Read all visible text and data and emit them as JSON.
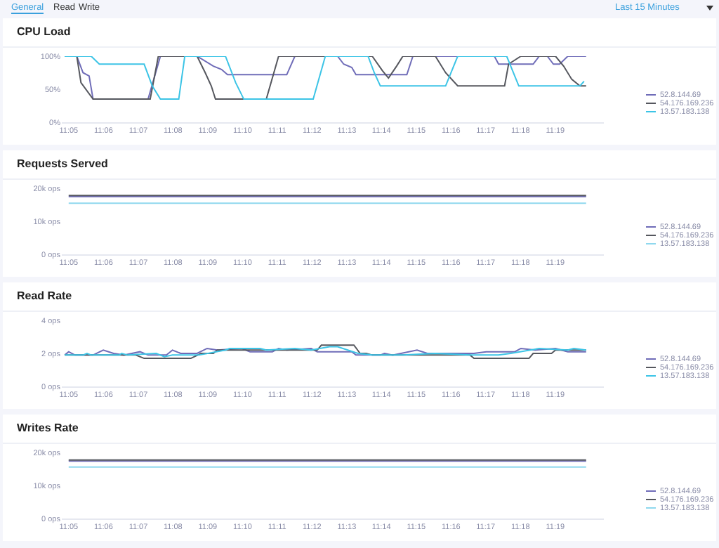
{
  "chart_data": [
    {
      "type": "line",
      "title": "CPU Load",
      "annotations": [
        "General",
        "Read",
        "Write",
        "Last 15 Minutes"
      ],
      "legend": "right",
      "grid": false,
      "xlim": [
        11.08,
        11.34
      ],
      "xticks": [
        {
          "value": 11.0833,
          "label": "11:05"
        },
        {
          "value": 11.1,
          "label": "11:06"
        },
        {
          "value": 11.1167,
          "label": "11:07"
        },
        {
          "value": 11.1333,
          "label": "11:08"
        },
        {
          "value": 11.15,
          "label": "11:09"
        },
        {
          "value": 11.1667,
          "label": "11:10"
        },
        {
          "value": 11.1833,
          "label": "11:11"
        },
        {
          "value": 11.2,
          "label": "11:12"
        },
        {
          "value": 11.2167,
          "label": "11:13"
        },
        {
          "value": 11.2333,
          "label": "11:14"
        },
        {
          "value": 11.25,
          "label": "11:15"
        },
        {
          "value": 11.2667,
          "label": "11:16"
        },
        {
          "value": 11.2833,
          "label": "11:17"
        },
        {
          "value": 11.3,
          "label": "11:18"
        },
        {
          "value": 11.3167,
          "label": "11:19"
        }
      ],
      "ylim": [
        0,
        100
      ],
      "yticks": [
        {
          "value": 0,
          "label": "0%"
        },
        {
          "value": 50,
          "label": "50%"
        },
        {
          "value": 100,
          "label": "100%"
        }
      ],
      "series": [
        {
          "name": "52.8.144.69",
          "color": "#6f6cb8",
          "x": [
            11.0814,
            11.0872,
            11.0902,
            11.0931,
            11.095,
            11.1214,
            11.1273,
            11.1449,
            11.1527,
            11.1566,
            11.1595,
            11.1879,
            11.1918,
            11.2123,
            11.2152,
            11.2191,
            11.2211,
            11.2455,
            11.2484,
            11.2875,
            11.2895,
            11.3061,
            11.309,
            11.3129,
            11.3158,
            11.3188,
            11.3227,
            11.3315
          ],
          "values": [
            100,
            100,
            75,
            70,
            35,
            35,
            100,
            100,
            85,
            80,
            72,
            72,
            100,
            100,
            88,
            83,
            72,
            72,
            100,
            100,
            88,
            88,
            100,
            100,
            88,
            88,
            100,
            100
          ]
        },
        {
          "name": "54.176.169.236",
          "color": "#55575e",
          "x": [
            11.0814,
            11.0872,
            11.0892,
            11.095,
            11.1224,
            11.1263,
            11.1449,
            11.1488,
            11.1517,
            11.1537,
            11.1781,
            11.184,
            11.2289,
            11.2338,
            11.2367,
            11.2406,
            11.2436,
            11.2592,
            11.2641,
            11.2699,
            11.2924,
            11.2943,
            11.3002,
            11.3168,
            11.3207,
            11.3246,
            11.3285,
            11.3315
          ],
          "values": [
            100,
            100,
            60,
            35,
            35,
            100,
            100,
            75,
            55,
            35,
            35,
            100,
            100,
            78,
            67,
            85,
            100,
            100,
            75,
            55,
            55,
            88,
            100,
            100,
            85,
            65,
            55,
            55
          ]
        },
        {
          "name": "13.57.183.138",
          "color": "#3cc4e6",
          "x": [
            11.0814,
            11.0941,
            11.098,
            11.1195,
            11.1234,
            11.1273,
            11.1361,
            11.139,
            11.1585,
            11.1634,
            11.1673,
            11.2006,
            11.2064,
            11.2269,
            11.2299,
            11.2328,
            11.2641,
            11.2699,
            11.2934,
            11.2992,
            11.3285,
            11.3305
          ],
          "values": [
            100,
            100,
            88,
            88,
            55,
            35,
            35,
            100,
            100,
            60,
            35,
            35,
            100,
            100,
            75,
            55,
            55,
            100,
            100,
            55,
            55,
            62
          ]
        }
      ]
    },
    {
      "type": "line",
      "title": "Requests Served",
      "legend": "right",
      "grid": false,
      "xlim": [
        11.08,
        11.34
      ],
      "xticks": [
        {
          "value": 11.0833,
          "label": "11:05"
        },
        {
          "value": 11.1,
          "label": "11:06"
        },
        {
          "value": 11.1167,
          "label": "11:07"
        },
        {
          "value": 11.1333,
          "label": "11:08"
        },
        {
          "value": 11.15,
          "label": "11:09"
        },
        {
          "value": 11.1667,
          "label": "11:10"
        },
        {
          "value": 11.1833,
          "label": "11:11"
        },
        {
          "value": 11.2,
          "label": "11:12"
        },
        {
          "value": 11.2167,
          "label": "11:13"
        },
        {
          "value": 11.2333,
          "label": "11:14"
        },
        {
          "value": 11.25,
          "label": "11:15"
        },
        {
          "value": 11.2667,
          "label": "11:16"
        },
        {
          "value": 11.2833,
          "label": "11:17"
        },
        {
          "value": 11.3,
          "label": "11:18"
        },
        {
          "value": 11.3167,
          "label": "11:19"
        }
      ],
      "ylim": [
        0,
        20000
      ],
      "yticks": [
        {
          "value": 0,
          "label": "0 ops"
        },
        {
          "value": 10000,
          "label": "10k ops"
        },
        {
          "value": 20000,
          "label": "20k ops"
        }
      ],
      "series": [
        {
          "name": "52.8.144.69",
          "color": "#6f6cb8",
          "x": [
            11.0833,
            11.2,
            11.3315
          ],
          "values": [
            17500,
            17500,
            17500
          ]
        },
        {
          "name": "54.176.169.236",
          "color": "#55575e",
          "x": [
            11.0833,
            11.2,
            11.3315
          ],
          "values": [
            17800,
            17800,
            17800
          ]
        },
        {
          "name": "13.57.183.138",
          "color": "#8fd8ee",
          "x": [
            11.0833,
            11.2,
            11.3315
          ],
          "values": [
            15500,
            15500,
            15500
          ]
        }
      ]
    },
    {
      "type": "line",
      "title": "Read Rate",
      "legend": "right",
      "grid": false,
      "xlim": [
        11.08,
        11.34
      ],
      "xticks": [
        {
          "value": 11.0833,
          "label": "11:05"
        },
        {
          "value": 11.1,
          "label": "11:06"
        },
        {
          "value": 11.1167,
          "label": "11:07"
        },
        {
          "value": 11.1333,
          "label": "11:08"
        },
        {
          "value": 11.15,
          "label": "11:09"
        },
        {
          "value": 11.1667,
          "label": "11:10"
        },
        {
          "value": 11.1833,
          "label": "11:11"
        },
        {
          "value": 11.2,
          "label": "11:12"
        },
        {
          "value": 11.2167,
          "label": "11:13"
        },
        {
          "value": 11.2333,
          "label": "11:14"
        },
        {
          "value": 11.25,
          "label": "11:15"
        },
        {
          "value": 11.2667,
          "label": "11:16"
        },
        {
          "value": 11.2833,
          "label": "11:17"
        },
        {
          "value": 11.3,
          "label": "11:18"
        },
        {
          "value": 11.3167,
          "label": "11:19"
        }
      ],
      "ylim": [
        0,
        4
      ],
      "yticks": [
        {
          "value": 0,
          "label": "0 ops"
        },
        {
          "value": 2,
          "label": "2 ops"
        },
        {
          "value": 4,
          "label": "4 ops"
        }
      ],
      "series": [
        {
          "name": "52.8.144.69",
          "color": "#6f6cb8",
          "x": [
            11.0814,
            11.0833,
            11.0863,
            11.095,
            11.0999,
            11.1048,
            11.1097,
            11.1175,
            11.1214,
            11.1302,
            11.1331,
            11.137,
            11.1449,
            11.1497,
            11.1546,
            11.1663,
            11.1703,
            11.181,
            11.184,
            11.1879,
            11.1996,
            11.2025,
            11.2191,
            11.2211,
            11.2328,
            11.2348,
            11.2387,
            11.2504,
            11.2553,
            11.2777,
            11.2836,
            11.2973,
            11.3002,
            11.307,
            11.3168,
            11.3227,
            11.3315
          ],
          "values": [
            1.9,
            2.1,
            1.9,
            1.9,
            2.2,
            2.0,
            1.9,
            2.1,
            1.9,
            1.9,
            2.2,
            2.0,
            2.0,
            2.3,
            2.2,
            2.3,
            2.1,
            2.1,
            2.3,
            2.2,
            2.3,
            2.1,
            2.1,
            1.9,
            1.9,
            2.0,
            1.9,
            2.2,
            2.0,
            2.0,
            2.1,
            2.1,
            2.3,
            2.2,
            2.3,
            2.1,
            2.1
          ]
        },
        {
          "name": "54.176.169.236",
          "color": "#55575e",
          "x": [
            11.0814,
            11.1155,
            11.1195,
            11.1419,
            11.1468,
            11.1527,
            11.1546,
            11.2025,
            11.2045,
            11.2201,
            11.2231,
            11.226,
            11.2289,
            11.2758,
            11.2777,
            11.3041,
            11.3061,
            11.3149,
            11.3168,
            11.3315
          ],
          "values": [
            1.9,
            1.9,
            1.7,
            1.7,
            2.0,
            2.0,
            2.2,
            2.2,
            2.5,
            2.5,
            2.0,
            2.0,
            1.9,
            1.9,
            1.7,
            1.7,
            2.0,
            2.0,
            2.2,
            2.2
          ]
        },
        {
          "name": "13.57.183.138",
          "color": "#3cc4e6",
          "x": [
            11.0814,
            11.0902,
            11.0921,
            11.0941,
            11.1077,
            11.1087,
            11.1116,
            11.1253,
            11.1292,
            11.1331,
            11.1458,
            11.1585,
            11.1605,
            11.1751,
            11.1781,
            11.1918,
            11.1996,
            11.2084,
            11.2123,
            11.2221,
            11.2289,
            11.2436,
            11.2592,
            11.2758,
            11.2895,
            11.2953,
            11.309,
            11.3227,
            11.3256,
            11.3315
          ],
          "values": [
            1.9,
            1.9,
            2.0,
            1.9,
            1.9,
            2.0,
            1.9,
            2.0,
            1.8,
            1.9,
            1.9,
            2.2,
            2.3,
            2.3,
            2.2,
            2.3,
            2.2,
            2.4,
            2.4,
            2.0,
            1.9,
            1.9,
            2.0,
            1.9,
            1.9,
            2.0,
            2.3,
            2.2,
            2.3,
            2.2
          ]
        }
      ]
    },
    {
      "type": "line",
      "title": "Writes Rate",
      "legend": "right",
      "grid": false,
      "xlim": [
        11.08,
        11.34
      ],
      "xticks": [
        {
          "value": 11.0833,
          "label": "11:05"
        },
        {
          "value": 11.1,
          "label": "11:06"
        },
        {
          "value": 11.1167,
          "label": "11:07"
        },
        {
          "value": 11.1333,
          "label": "11:08"
        },
        {
          "value": 11.15,
          "label": "11:09"
        },
        {
          "value": 11.1667,
          "label": "11:10"
        },
        {
          "value": 11.1833,
          "label": "11:11"
        },
        {
          "value": 11.2,
          "label": "11:12"
        },
        {
          "value": 11.2167,
          "label": "11:13"
        },
        {
          "value": 11.2333,
          "label": "11:14"
        },
        {
          "value": 11.25,
          "label": "11:15"
        },
        {
          "value": 11.2667,
          "label": "11:16"
        },
        {
          "value": 11.2833,
          "label": "11:17"
        },
        {
          "value": 11.3,
          "label": "11:18"
        },
        {
          "value": 11.3167,
          "label": "11:19"
        }
      ],
      "ylim": [
        0,
        20000
      ],
      "yticks": [
        {
          "value": 0,
          "label": "0 ops"
        },
        {
          "value": 10000,
          "label": "10k ops"
        },
        {
          "value": 20000,
          "label": "20k ops"
        }
      ],
      "series": [
        {
          "name": "52.8.144.69",
          "color": "#6f6cb8",
          "x": [
            11.0833,
            11.2,
            11.3315
          ],
          "values": [
            17400,
            17400,
            17400
          ]
        },
        {
          "name": "54.176.169.236",
          "color": "#55575e",
          "x": [
            11.0833,
            11.2,
            11.3315
          ],
          "values": [
            17700,
            17700,
            17700
          ]
        },
        {
          "name": "13.57.183.138",
          "color": "#8fd8ee",
          "x": [
            11.0833,
            11.2,
            11.3315
          ],
          "values": [
            15600,
            15600,
            15600
          ]
        }
      ]
    }
  ]
}
